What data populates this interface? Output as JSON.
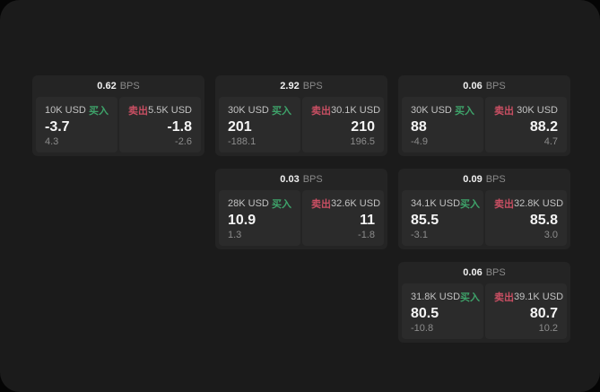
{
  "labels": {
    "buy": "买入",
    "sell": "卖出",
    "bps_unit": "BPS"
  },
  "colors": {
    "buy": "#3ea36a",
    "sell": "#c94f63",
    "panel_bg": "#1b1b1b",
    "card_bg": "#242424",
    "tile_bg": "#2b2b2b"
  },
  "cards": [
    {
      "bps": "0.62",
      "buy": {
        "size": "10K USD",
        "value": "-3.7",
        "delta": "4.3"
      },
      "sell": {
        "size": "5.5K USD",
        "value": "-1.8",
        "delta": "-2.6"
      }
    },
    {
      "bps": "2.92",
      "buy": {
        "size": "30K USD",
        "value": "201",
        "delta": "-188.1"
      },
      "sell": {
        "size": "30.1K USD",
        "value": "210",
        "delta": "196.5"
      }
    },
    {
      "bps": "0.06",
      "buy": {
        "size": "30K USD",
        "value": "88",
        "delta": "-4.9"
      },
      "sell": {
        "size": "30K USD",
        "value": "88.2",
        "delta": "4.7"
      }
    },
    {
      "bps": "0.03",
      "buy": {
        "size": "28K USD",
        "value": "10.9",
        "delta": "1.3"
      },
      "sell": {
        "size": "32.6K USD",
        "value": "11",
        "delta": "-1.8"
      }
    },
    {
      "bps": "0.09",
      "buy": {
        "size": "34.1K USD",
        "value": "85.5",
        "delta": "-3.1"
      },
      "sell": {
        "size": "32.8K USD",
        "value": "85.8",
        "delta": "3.0"
      }
    },
    {
      "bps": "0.06",
      "buy": {
        "size": "31.8K USD",
        "value": "80.5",
        "delta": "-10.8"
      },
      "sell": {
        "size": "39.1K USD",
        "value": "80.7",
        "delta": "10.2"
      }
    }
  ]
}
